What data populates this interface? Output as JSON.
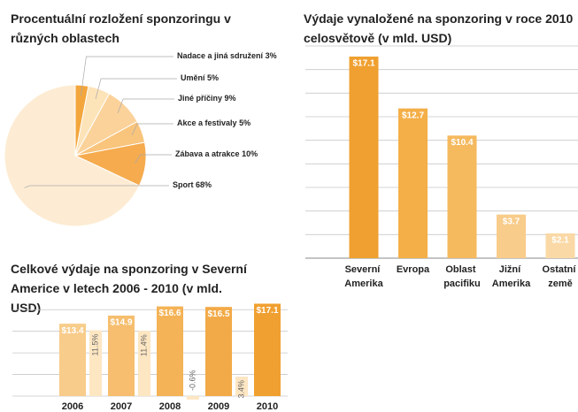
{
  "chart_data": [
    {
      "type": "pie",
      "title": "Procentuální rozložení sponzoringu v různých oblastech",
      "categories": [
        "Nadace a jiná sdružení",
        "Umění",
        "Jiné příčiny",
        "Akce a festivaly",
        "Zábava a atrakce",
        "Sport"
      ],
      "values": [
        3,
        5,
        9,
        5,
        10,
        68
      ],
      "value_labels": [
        "3%",
        "5%",
        "9%",
        "5%",
        "10%",
        "68%"
      ],
      "colors": [
        "#f3a63c",
        "#fde3b8",
        "#fbd29a",
        "#f9c47c",
        "#f5ab4e",
        "#fdecd3"
      ]
    },
    {
      "type": "bar",
      "title": "Výdaje vynaložené na sponzoring v roce 2010 celosvětově (v mld. USD)",
      "categories": [
        "Severní Amerika",
        "Evropa",
        "Oblast pacifiku",
        "Jižní Amerika",
        "Ostatní země"
      ],
      "values": [
        17.1,
        12.7,
        10.4,
        3.7,
        2.1
      ],
      "value_labels": [
        "$17.1",
        "$12.7",
        "$10.4",
        "$3.7",
        "$2.1"
      ],
      "colors": [
        "#f0a030",
        "#f4af48",
        "#f5b95e",
        "#f8cc8a",
        "#fad9a6"
      ],
      "ylim": [
        0,
        18
      ],
      "yticks": [
        0,
        2,
        4,
        6,
        8,
        10,
        12,
        14,
        16,
        18
      ],
      "grid": true
    },
    {
      "type": "grouped-bar",
      "title": "Celkové výdaje na sponzoring v Severní Americe v letech 2006 - 2010 (v mld. USD)",
      "categories": [
        "2006",
        "2007",
        "2008",
        "2009",
        "2010"
      ],
      "series": [
        {
          "values": [
            13.4,
            14.9,
            16.6,
            16.5,
            17.1
          ],
          "value_labels": [
            "$13.4",
            "$14.9",
            "$16.6",
            "$16.5",
            "$17.1"
          ],
          "colors": [
            "#f8cc8a",
            "#f6be6e",
            "#f4b356",
            "#f2aa48",
            "#f0a030"
          ]
        },
        {
          "axis": "y2",
          "values": [
            null,
            11.5,
            11.4,
            -0.6,
            3.4
          ],
          "value_labels": [
            null,
            "11.5%",
            "11.4%",
            "-0.6%",
            "3.4%"
          ],
          "color": "#fde6c2"
        }
      ],
      "ylim": [
        0,
        18
      ],
      "yticks": [
        0,
        4,
        8,
        12,
        16
      ],
      "y2lim": [
        0,
        17
      ],
      "grid": true
    }
  ]
}
